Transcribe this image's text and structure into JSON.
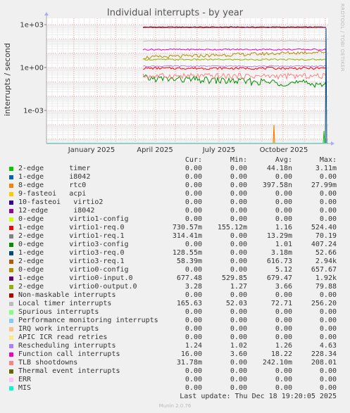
{
  "chart_data": {
    "type": "line",
    "title": "Individual interrupts - by year",
    "ylabel": "interrupts / second",
    "y_scale": "log",
    "y_ticks": [
      "1e+03",
      "1e+00",
      "1e-03"
    ],
    "x_ticks": [
      "January 2025",
      "April 2025",
      "July 2025",
      "October 2025"
    ],
    "watermark": "RRDTOOL / TOBI OETIKER",
    "columns": [
      "Cur:",
      "Min:",
      "Avg:",
      "Max:"
    ],
    "series": [
      {
        "name": "2-edge      timer",
        "color": "#00cc00",
        "cur": "0.00",
        "min": "0.00",
        "avg": "44.18n",
        "max": "3.11m"
      },
      {
        "name": "1-edge      i8042",
        "color": "#0066b3",
        "cur": "0.00",
        "min": "0.00",
        "avg": "0.00",
        "max": "0.00"
      },
      {
        "name": "8-edge      rtc0",
        "color": "#ff8000",
        "cur": "0.00",
        "min": "0.00",
        "avg": "397.58n",
        "max": "27.99m"
      },
      {
        "name": "9-fasteoi   acpi",
        "color": "#ffcc00",
        "cur": "0.00",
        "min": "0.00",
        "avg": "0.00",
        "max": "0.00"
      },
      {
        "name": "10-fasteoi   virtio2",
        "color": "#330099",
        "cur": "0.00",
        "min": "0.00",
        "avg": "0.00",
        "max": "0.00"
      },
      {
        "name": "12-edge      i8042",
        "color": "#990099",
        "cur": "0.00",
        "min": "0.00",
        "avg": "0.00",
        "max": "0.00"
      },
      {
        "name": "0-edge      virtio1-config",
        "color": "#ccff00",
        "cur": "0.00",
        "min": "0.00",
        "avg": "0.00",
        "max": "0.00"
      },
      {
        "name": "1-edge      virtio1-req.0",
        "color": "#ff0000",
        "cur": "730.57m",
        "min": "155.12m",
        "avg": "1.16",
        "max": "524.40"
      },
      {
        "name": "2-edge      virtio1-req.1",
        "color": "#808080",
        "cur": "314.41m",
        "min": "0.00",
        "avg": "13.29m",
        "max": "70.19"
      },
      {
        "name": "0-edge      virtio3-config",
        "color": "#008f00",
        "cur": "0.00",
        "min": "0.00",
        "avg": "1.01",
        "max": "407.24"
      },
      {
        "name": "1-edge      virtio3-req.0",
        "color": "#00487d",
        "cur": "128.55m",
        "min": "0.00",
        "avg": "3.18m",
        "max": "52.66"
      },
      {
        "name": "2-edge      virtio3-req.1",
        "color": "#b35a00",
        "cur": "58.39m",
        "min": "0.00",
        "avg": "616.73",
        "max": "2.94k"
      },
      {
        "name": "0-edge      virtio0-config",
        "color": "#b38f00",
        "cur": "0.00",
        "min": "0.00",
        "avg": "5.12",
        "max": "657.67"
      },
      {
        "name": "1-edge      virtio0-input.0",
        "color": "#6b006b",
        "cur": "677.48",
        "min": "529.85",
        "avg": "679.47",
        "max": "1.92k"
      },
      {
        "name": "2-edge      virtio0-output.0",
        "color": "#8fb300",
        "cur": "3.28",
        "min": "1.27",
        "avg": "3.66",
        "max": "79.88"
      },
      {
        "name": "Non-maskable interrupts",
        "color": "#b30000",
        "cur": "0.00",
        "min": "0.00",
        "avg": "0.00",
        "max": "0.00"
      },
      {
        "name": "Local timer interrupts",
        "color": "#bebebe",
        "cur": "165.63",
        "min": "52.03",
        "avg": "72.71",
        "max": "256.20"
      },
      {
        "name": "Spurious interrupts",
        "color": "#80ff80",
        "cur": "0.00",
        "min": "0.00",
        "avg": "0.00",
        "max": "0.00"
      },
      {
        "name": "Performance monitoring interrupts",
        "color": "#80c9ff",
        "cur": "0.00",
        "min": "0.00",
        "avg": "0.00",
        "max": "0.00"
      },
      {
        "name": "IRQ work interrupts",
        "color": "#ffc080",
        "cur": "0.00",
        "min": "0.00",
        "avg": "0.00",
        "max": "0.00"
      },
      {
        "name": "APIC ICR read retries",
        "color": "#ffe680",
        "cur": "0.00",
        "min": "0.00",
        "avg": "0.00",
        "max": "0.00"
      },
      {
        "name": "Rescheduling interrupts",
        "color": "#aa80ff",
        "cur": "1.24",
        "min": "1.02",
        "avg": "1.26",
        "max": "4.63"
      },
      {
        "name": "Function call interrupts",
        "color": "#ee00cc",
        "cur": "16.00",
        "min": "3.60",
        "avg": "18.22",
        "max": "228.34"
      },
      {
        "name": "TLB shootdowns",
        "color": "#ff8080",
        "cur": "31.78m",
        "min": "0.00",
        "avg": "242.10m",
        "max": "208.01"
      },
      {
        "name": "Thermal event interrupts",
        "color": "#666600",
        "cur": "0.00",
        "min": "0.00",
        "avg": "0.00",
        "max": "0.00"
      },
      {
        "name": "ERR",
        "color": "#ffbfff",
        "cur": "0.00",
        "min": "0.00",
        "avg": "0.00",
        "max": "0.00"
      },
      {
        "name": "MIS",
        "color": "#00ffcc",
        "cur": "0.00",
        "min": "0.00",
        "avg": "0.00",
        "max": "0.00"
      }
    ]
  },
  "last_update": "Last update: Thu Dec 18 19:20:05 2025",
  "footer": "Munin 2.0.76"
}
